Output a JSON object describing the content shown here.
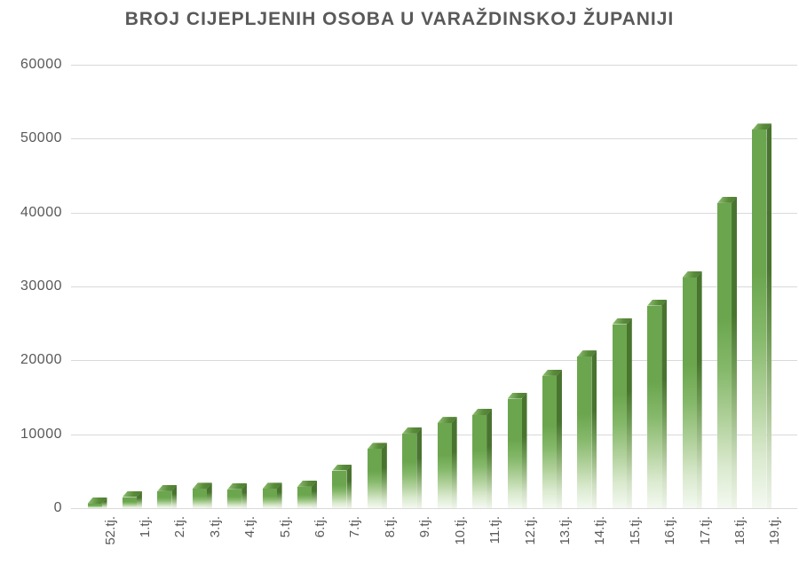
{
  "chart_data": {
    "type": "bar",
    "title": "BROJ CIJEPLJENIH OSOBA U VARAŽDINSKOJ ŽUPANIJI",
    "categories": [
      "52.tj.",
      "1.tj.",
      "2.tj.",
      "3.tj.",
      "4.tj.",
      "5.tj.",
      "6.tj.",
      "7.tj.",
      "8.tj.",
      "9.tj.",
      "10.tj.",
      "11.tj.",
      "12.tj.",
      "13.tj.",
      "14.tj.",
      "15.tj.",
      "16.tj.",
      "17.tj.",
      "18.tj.",
      "19.tj."
    ],
    "values": [
      600,
      1500,
      2300,
      2600,
      2550,
      2600,
      2900,
      5100,
      8000,
      10100,
      11500,
      12600,
      14800,
      17900,
      20500,
      24900,
      27400,
      31200,
      41300,
      51200
    ],
    "xlabel": "",
    "ylabel": "",
    "ylim": [
      0,
      60000
    ],
    "yticks": [
      0,
      10000,
      20000,
      30000,
      40000,
      50000,
      60000
    ],
    "grid": true,
    "legend": false,
    "bar_style": "3d-box-gradient-fade-to-white",
    "colors": {
      "bar_front": "#6BA64E",
      "bar_side": "#49742F",
      "bar_cap_light": "#93C476",
      "bar_cap_dark": "#4C7A31",
      "gridline": "#D9D9D9",
      "text": "#595959",
      "background": "#FFFFFF"
    }
  }
}
